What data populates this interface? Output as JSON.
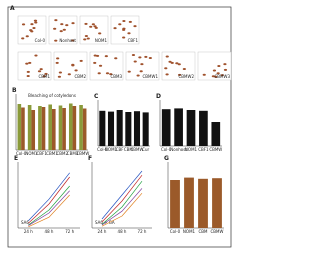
{
  "panels": [
    {
      "letter": "A",
      "type": "seeds",
      "labels": [
        "Col-0",
        "Nonhost",
        "NOM1",
        "CBF1",
        "CBM1",
        "CBM2",
        "CBM3",
        "CBMW1",
        "CBMW2",
        "CBMW3"
      ]
    },
    {
      "letter": "B",
      "type": "bar",
      "title": "Bleaching of cotyledons",
      "series": [
        {
          "color": "#8a9a3a",
          "values": [
            92,
            90,
            88,
            91,
            89,
            93,
            90
          ]
        },
        {
          "color": "#9b5a2a",
          "values": [
            85,
            80,
            86,
            82,
            84,
            88,
            83
          ]
        }
      ],
      "categories": [
        "Col-0",
        "NOM1",
        "CBF1",
        "CBM1",
        "CBM2",
        "CBM3",
        "CBMW"
      ]
    },
    {
      "letter": "C",
      "type": "bar",
      "series": [
        {
          "color": "#111",
          "values": [
            88,
            86,
            90,
            85,
            87,
            84
          ]
        }
      ],
      "categories": [
        "Col-0",
        "NOM1",
        "CBF",
        "CBM",
        "CBMW",
        "Cur"
      ]
    },
    {
      "letter": "D",
      "type": "bar",
      "series": [
        {
          "color": "#111",
          "values": [
            92,
            94,
            90,
            88,
            60
          ]
        }
      ],
      "categories": [
        "Col-0",
        "Nonhost",
        "NOM1",
        "CBF1",
        "CBMW"
      ]
    },
    {
      "letter": "E",
      "type": "line",
      "note": "SA6",
      "categories": [
        "24 h",
        "48 h",
        "72 h"
      ],
      "series": [
        {
          "color": "#2050c0",
          "values": [
            12,
            48,
            92
          ]
        },
        {
          "color": "#c02020",
          "values": [
            8,
            40,
            85
          ]
        },
        {
          "color": "#20a040",
          "values": [
            5,
            30,
            70
          ]
        },
        {
          "color": "#8040a0",
          "values": [
            4,
            25,
            62
          ]
        },
        {
          "color": "#e08020",
          "values": [
            2,
            18,
            55
          ]
        }
      ]
    },
    {
      "letter": "F",
      "type": "line",
      "note": "SA6 + GA",
      "categories": [
        "24 h",
        "48 h",
        "72 h"
      ],
      "series": [
        {
          "color": "#2050c0",
          "values": [
            15,
            55,
            95
          ]
        },
        {
          "color": "#c02020",
          "values": [
            10,
            45,
            88
          ]
        },
        {
          "color": "#20a040",
          "values": [
            6,
            35,
            78
          ]
        },
        {
          "color": "#8040a0",
          "values": [
            5,
            28,
            66
          ]
        },
        {
          "color": "#e08020",
          "values": [
            3,
            20,
            58
          ]
        }
      ]
    },
    {
      "letter": "G",
      "type": "bar",
      "series": [
        {
          "color": "#9b5a2a",
          "values": [
            80,
            84,
            82,
            83
          ]
        }
      ],
      "categories": [
        "Col-0",
        "NOM1",
        "CBM",
        "CBMW"
      ]
    }
  ]
}
